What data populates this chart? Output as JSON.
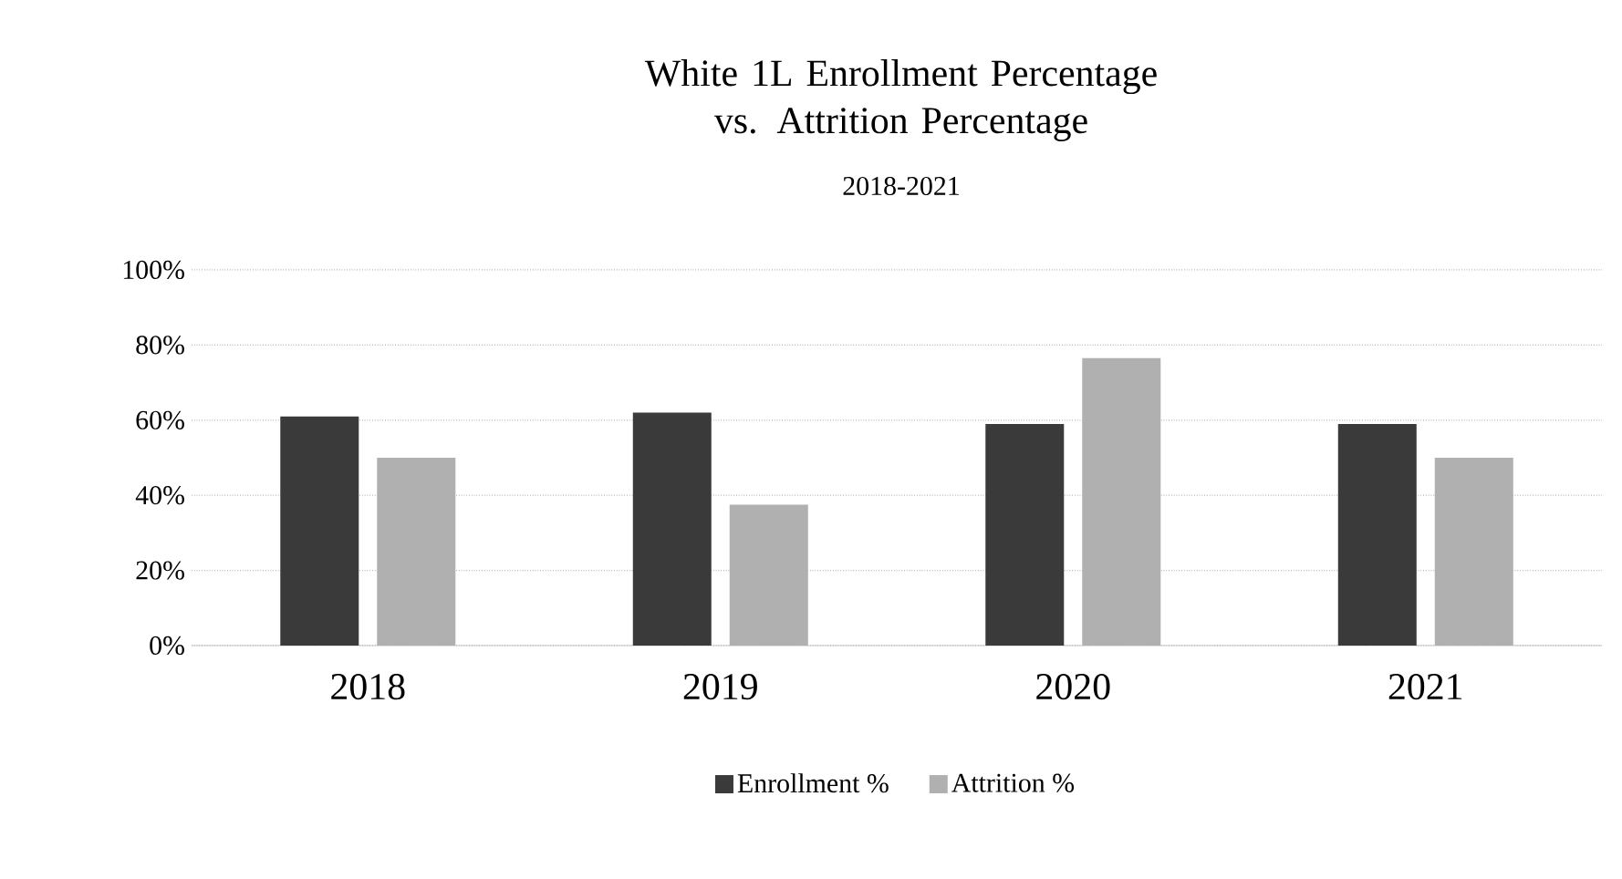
{
  "chart_data": {
    "type": "bar",
    "title": "White 1L Enrollment Percentage vs. Attrition Percentage",
    "subtitle": "2018-2021",
    "categories": [
      "2018",
      "2019",
      "2020",
      "2021"
    ],
    "series": [
      {
        "name": "Enrollment %",
        "color": "#3a3a3a",
        "values": [
          61,
          62,
          59,
          59
        ]
      },
      {
        "name": "Attrition %",
        "color": "#b0b0b0",
        "values": [
          50,
          37.5,
          76.5,
          50
        ]
      }
    ],
    "ylim": [
      0,
      100
    ],
    "yticks": [
      {
        "value": 0,
        "label": "0%"
      },
      {
        "value": 20,
        "label": "20%"
      },
      {
        "value": 40,
        "label": "40%"
      },
      {
        "value": 60,
        "label": "60%"
      },
      {
        "value": 80,
        "label": "80%"
      },
      {
        "value": 100,
        "label": "100%"
      }
    ],
    "grid": "y",
    "legend": "bottom"
  }
}
